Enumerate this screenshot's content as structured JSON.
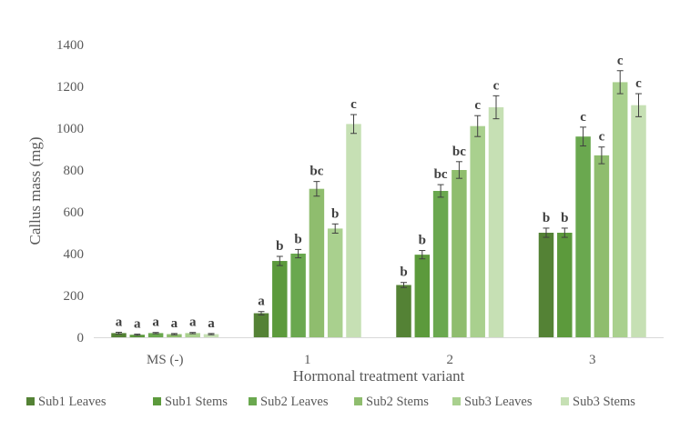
{
  "chart_data": {
    "type": "bar",
    "title": "",
    "xlabel": "Hormonal treatment variant",
    "ylabel": "Callus mass (mg)",
    "ylim": [
      0,
      1400
    ],
    "yticks": [
      0,
      200,
      400,
      600,
      800,
      1000,
      1200,
      1400
    ],
    "grid": false,
    "legend_position": "bottom",
    "categories": [
      "MS (-)",
      "1",
      "2",
      "3"
    ],
    "series": [
      {
        "name": "Sub1 Leaves",
        "color": "#548235",
        "values": [
          20,
          115,
          250,
          500
        ],
        "errors": [
          4,
          8,
          12,
          22
        ],
        "labels": [
          "a",
          "a",
          "b",
          "b"
        ]
      },
      {
        "name": "Sub1 Stems",
        "color": "#5c9a3c",
        "values": [
          12,
          365,
          395,
          500
        ],
        "errors": [
          3,
          22,
          20,
          22
        ],
        "labels": [
          "a",
          "b",
          "b",
          "b"
        ]
      },
      {
        "name": "Sub2 Leaves",
        "color": "#6aa84f",
        "values": [
          20,
          400,
          700,
          960
        ],
        "errors": [
          3,
          20,
          30,
          45
        ],
        "labels": [
          "a",
          "b",
          "bc",
          "c"
        ]
      },
      {
        "name": "Sub2 Stems",
        "color": "#8fbd6e",
        "values": [
          15,
          710,
          800,
          870
        ],
        "errors": [
          3,
          35,
          40,
          40
        ],
        "labels": [
          "a",
          "bc",
          "bc",
          "c"
        ]
      },
      {
        "name": "Sub3 Leaves",
        "color": "#a9d08e",
        "values": [
          20,
          520,
          1010,
          1220
        ],
        "errors": [
          3,
          22,
          50,
          55
        ],
        "labels": [
          "a",
          "b",
          "c",
          "c"
        ]
      },
      {
        "name": "Sub3 Stems",
        "color": "#c6e0b4",
        "values": [
          15,
          1020,
          1100,
          1110
        ],
        "errors": [
          3,
          45,
          55,
          55
        ],
        "labels": [
          "a",
          "c",
          "c",
          "c"
        ]
      }
    ]
  }
}
